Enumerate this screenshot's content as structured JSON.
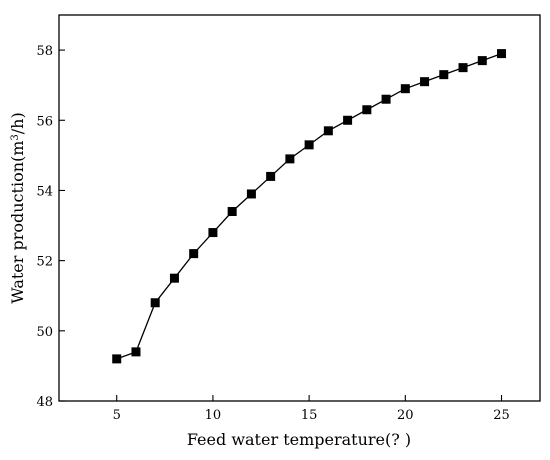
{
  "chart_data": {
    "type": "line",
    "title": "",
    "xlabel": "Feed water temperature(?  )",
    "ylabel_parts": {
      "before": "Water production(m",
      "superscript": "3",
      "after": "/h)"
    },
    "xlim": [
      2,
      27
    ],
    "ylim": [
      48,
      59
    ],
    "x_ticks": [
      5,
      10,
      15,
      20,
      25
    ],
    "y_ticks": [
      48,
      50,
      52,
      54,
      56,
      58
    ],
    "grid": false,
    "legend": "none",
    "marker": "square",
    "color": "#000000",
    "series": [
      {
        "x": [
          5,
          6,
          7,
          8,
          9,
          10,
          11,
          12,
          13,
          14,
          15,
          16,
          17,
          18,
          19,
          20,
          21,
          22,
          23,
          24,
          25
        ],
        "y": [
          49.2,
          49.4,
          50.8,
          51.5,
          52.2,
          52.8,
          53.4,
          53.9,
          54.4,
          54.9,
          55.3,
          55.7,
          56.0,
          56.3,
          56.6,
          56.9,
          57.1,
          57.3,
          57.5,
          57.7,
          57.9
        ]
      }
    ]
  }
}
